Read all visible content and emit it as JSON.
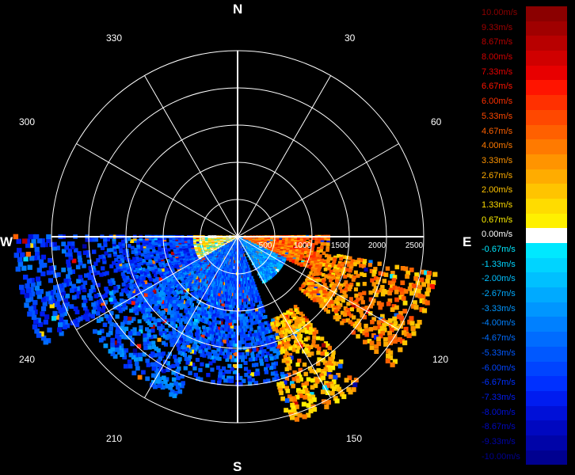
{
  "cardinals": {
    "N": "N",
    "E": "E",
    "S": "S",
    "W": "W"
  },
  "azimuth_labels": [
    "30",
    "60",
    "120",
    "150",
    "210",
    "240",
    "300",
    "330"
  ],
  "range_labels": [
    "500",
    "1000",
    "1500",
    "2000",
    "2500"
  ],
  "colorbar": [
    {
      "label": "10.00m/s",
      "color": "#8b0000"
    },
    {
      "label": "9.33m/s",
      "color": "#a00000"
    },
    {
      "label": "8.67m/s",
      "color": "#b80000"
    },
    {
      "label": "8.00m/s",
      "color": "#d00000"
    },
    {
      "label": "7.33m/s",
      "color": "#e80000"
    },
    {
      "label": "6.67m/s",
      "color": "#ff1400"
    },
    {
      "label": "6.00m/s",
      "color": "#ff3000"
    },
    {
      "label": "5.33m/s",
      "color": "#ff4800"
    },
    {
      "label": "4.67m/s",
      "color": "#ff6000"
    },
    {
      "label": "4.00m/s",
      "color": "#ff7a00"
    },
    {
      "label": "3.33m/s",
      "color": "#ff9400"
    },
    {
      "label": "2.67m/s",
      "color": "#ffac00"
    },
    {
      "label": "2.00m/s",
      "color": "#ffc400"
    },
    {
      "label": "1.33m/s",
      "color": "#ffdc00"
    },
    {
      "label": "0.67m/s",
      "color": "#fff000"
    },
    {
      "label": "0.00m/s",
      "color": "#ffffff"
    },
    {
      "label": "-0.67m/s",
      "color": "#00e8ff"
    },
    {
      "label": "-1.33m/s",
      "color": "#00d4ff"
    },
    {
      "label": "-2.00m/s",
      "color": "#00c0ff"
    },
    {
      "label": "-2.67m/s",
      "color": "#00aaff"
    },
    {
      "label": "-3.33m/s",
      "color": "#0096ff"
    },
    {
      "label": "-4.00m/s",
      "color": "#0080ff"
    },
    {
      "label": "-4.67m/s",
      "color": "#006cff"
    },
    {
      "label": "-5.33m/s",
      "color": "#0058ff"
    },
    {
      "label": "-6.00m/s",
      "color": "#0044ff"
    },
    {
      "label": "-6.67m/s",
      "color": "#0030ff"
    },
    {
      "label": "-7.33m/s",
      "color": "#001cf0"
    },
    {
      "label": "-8.00m/s",
      "color": "#0010d8"
    },
    {
      "label": "-8.67m/s",
      "color": "#0008c0"
    },
    {
      "label": "-9.33m/s",
      "color": "#0004a8"
    },
    {
      "label": "-10.00m/s",
      "color": "#000090"
    }
  ],
  "chart_data": {
    "type": "heatmap",
    "projection": "polar",
    "title": "",
    "range_rings": [
      500,
      1000,
      1500,
      2000,
      2500
    ],
    "range_max": 2500,
    "azimuth_spokes_deg": [
      0,
      30,
      60,
      90,
      120,
      150,
      180,
      210,
      240,
      270,
      300,
      330
    ],
    "scan_azimuth_range_deg": [
      90,
      270
    ],
    "value_range": [
      -10,
      10
    ],
    "units": "m/s",
    "regions": [
      {
        "az": [
          90,
          115
        ],
        "r": [
          100,
          1250
        ],
        "v": 4.5
      },
      {
        "az": [
          100,
          130
        ],
        "r": [
          1100,
          2700
        ],
        "v": 3.5
      },
      {
        "az": [
          115,
          150
        ],
        "r": [
          0,
          700
        ],
        "v": -3.5
      },
      {
        "az": [
          140,
          165
        ],
        "r": [
          1200,
          2600
        ],
        "v": 2.5
      },
      {
        "az": [
          160,
          200
        ],
        "r": [
          0,
          2000
        ],
        "v": -5.5
      },
      {
        "az": [
          200,
          240
        ],
        "r": [
          0,
          2300
        ],
        "v": -5.0
      },
      {
        "az": [
          240,
          270
        ],
        "r": [
          0,
          600
        ],
        "v": 1.0
      },
      {
        "az": [
          240,
          270
        ],
        "r": [
          600,
          3000
        ],
        "v": -6.0
      }
    ],
    "grid": true,
    "legend": "right"
  }
}
